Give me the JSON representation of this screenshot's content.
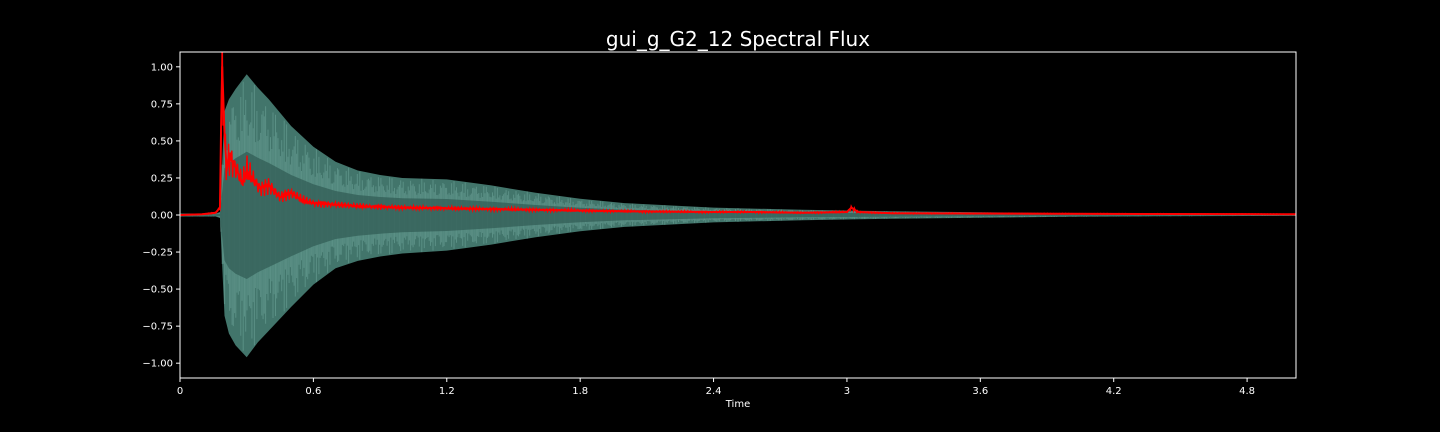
{
  "chart_data": {
    "type": "line",
    "title": "gui_g_G2_12 Spectral Flux",
    "xlabel": "Time",
    "ylabel": "",
    "xlim": [
      0,
      5.02
    ],
    "ylim": [
      -1.1,
      1.1
    ],
    "xticks": [
      0,
      0.6,
      1.2,
      1.8,
      2.4,
      3.0,
      3.6,
      4.2,
      4.8
    ],
    "xtick_labels": [
      "0",
      "0.6",
      "1.2",
      "1.8",
      "2.4",
      "3",
      "3.6",
      "4.2",
      "4.8"
    ],
    "yticks": [
      1.0,
      0.75,
      0.5,
      0.25,
      0.0,
      -0.25,
      -0.5,
      -0.75,
      -1.0
    ],
    "ytick_labels": [
      "1.00",
      "0.75",
      "0.50",
      "0.25",
      "0.00",
      "−0.25",
      "−0.50",
      "−0.75",
      "−1.00"
    ],
    "grid": false,
    "legend": "none",
    "series": [
      {
        "kind": "waveform-envelope",
        "color": "#4d8a7e",
        "x": [
          0,
          0.16,
          0.18,
          0.2,
          0.22,
          0.25,
          0.3,
          0.35,
          0.4,
          0.5,
          0.6,
          0.7,
          0.8,
          0.9,
          1.0,
          1.2,
          1.4,
          1.6,
          1.8,
          2.0,
          2.4,
          2.8,
          3.2,
          3.6,
          4.0,
          4.4,
          4.8,
          5.02
        ],
        "upper": [
          0.01,
          0.01,
          0.02,
          0.7,
          0.78,
          0.85,
          0.95,
          0.86,
          0.78,
          0.6,
          0.46,
          0.36,
          0.3,
          0.27,
          0.25,
          0.24,
          0.2,
          0.15,
          0.11,
          0.08,
          0.05,
          0.035,
          0.025,
          0.018,
          0.012,
          0.009,
          0.007,
          0.006
        ],
        "lower": [
          -0.01,
          -0.01,
          -0.02,
          -0.68,
          -0.8,
          -0.88,
          -0.96,
          -0.86,
          -0.78,
          -0.62,
          -0.47,
          -0.36,
          -0.31,
          -0.28,
          -0.26,
          -0.24,
          -0.2,
          -0.15,
          -0.11,
          -0.08,
          -0.05,
          -0.035,
          -0.025,
          -0.018,
          -0.012,
          -0.009,
          -0.007,
          -0.006
        ]
      },
      {
        "kind": "flux",
        "color": "#ff0000",
        "x": [
          0,
          0.1,
          0.16,
          0.18,
          0.185,
          0.19,
          0.2,
          0.21,
          0.22,
          0.25,
          0.28,
          0.3,
          0.33,
          0.36,
          0.4,
          0.45,
          0.5,
          0.55,
          0.6,
          0.7,
          0.8,
          0.9,
          1.0,
          1.2,
          1.4,
          1.6,
          1.8,
          2.0,
          2.4,
          2.6,
          2.8,
          3.0,
          3.02,
          3.05,
          3.2,
          3.6,
          4.0,
          4.4,
          4.8,
          5.02
        ],
        "y": [
          0.0,
          0.005,
          0.015,
          0.05,
          0.6,
          1.0,
          0.55,
          0.3,
          0.4,
          0.32,
          0.22,
          0.3,
          0.24,
          0.18,
          0.2,
          0.12,
          0.15,
          0.1,
          0.08,
          0.07,
          0.06,
          0.055,
          0.05,
          0.045,
          0.04,
          0.035,
          0.03,
          0.025,
          0.02,
          0.02,
          0.015,
          0.02,
          0.05,
          0.02,
          0.012,
          0.01,
          0.008,
          0.007,
          0.006,
          0.005
        ]
      }
    ]
  }
}
